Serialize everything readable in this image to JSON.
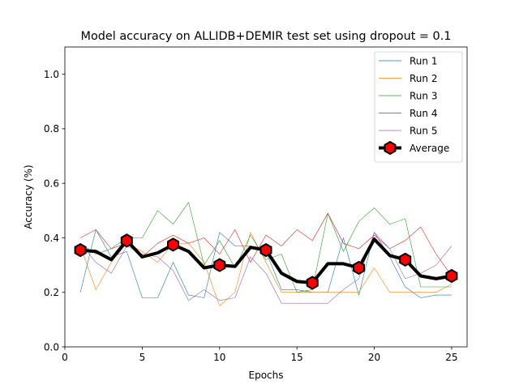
{
  "chart_data": {
    "type": "line",
    "title": "Model accuracy on ALLIDB+DEMIR test set using dropout = 0.1",
    "xlabel": "Epochs",
    "ylabel": "Accuracy (%)",
    "xlim": [
      0,
      26
    ],
    "ylim": [
      0.0,
      1.1
    ],
    "xticks": [
      0,
      5,
      10,
      15,
      20,
      25
    ],
    "yticks": [
      0.0,
      0.2,
      0.4,
      0.6,
      0.8,
      1.0
    ],
    "xtick_labels": [
      "0",
      "5",
      "10",
      "15",
      "20",
      "25"
    ],
    "ytick_labels": [
      "0.0",
      "0.2",
      "0.4",
      "0.6",
      "0.8",
      "1.0"
    ],
    "grid": false,
    "legend_position": "top-right",
    "x": [
      1,
      2,
      3,
      4,
      5,
      6,
      7,
      8,
      9,
      10,
      11,
      12,
      13,
      14,
      15,
      16,
      17,
      18,
      19,
      20,
      21,
      22,
      23,
      24,
      25
    ],
    "series": [
      {
        "name": "Run 1",
        "color": "#1f77b4",
        "values": [
          0.2,
          0.43,
          0.33,
          0.35,
          0.18,
          0.18,
          0.31,
          0.19,
          0.18,
          0.42,
          0.37,
          0.37,
          0.35,
          0.21,
          0.21,
          0.2,
          0.2,
          0.4,
          0.19,
          0.42,
          0.33,
          0.22,
          0.18,
          0.19,
          0.19
        ]
      },
      {
        "name": "Run 2",
        "color": "#ff7f0e",
        "values": [
          0.37,
          0.21,
          0.31,
          0.38,
          0.35,
          0.31,
          0.38,
          0.38,
          0.31,
          0.15,
          0.2,
          0.42,
          0.31,
          0.2,
          0.2,
          0.2,
          0.2,
          0.2,
          0.2,
          0.29,
          0.2,
          0.2,
          0.2,
          0.2,
          0.23
        ]
      },
      {
        "name": "Run 3",
        "color": "#2ca02c",
        "values": [
          0.38,
          0.34,
          0.36,
          0.4,
          0.4,
          0.5,
          0.45,
          0.53,
          0.3,
          0.39,
          0.29,
          0.41,
          0.32,
          0.34,
          0.2,
          0.21,
          0.49,
          0.35,
          0.46,
          0.51,
          0.45,
          0.47,
          0.22,
          0.22,
          0.22
        ]
      },
      {
        "name": "Run 4",
        "color": "#d62728",
        "values": [
          0.4,
          0.43,
          0.36,
          0.38,
          0.33,
          0.38,
          0.41,
          0.38,
          0.4,
          0.34,
          0.43,
          0.31,
          0.41,
          0.37,
          0.43,
          0.39,
          0.49,
          0.38,
          0.36,
          0.41,
          0.36,
          0.39,
          0.44,
          0.34,
          0.26
        ]
      },
      {
        "name": "Run 5",
        "color": "#9467bd",
        "values": [
          0.38,
          0.31,
          0.27,
          0.37,
          0.34,
          0.33,
          0.28,
          0.17,
          0.21,
          0.17,
          0.18,
          0.33,
          0.27,
          0.16,
          0.16,
          0.16,
          0.16,
          0.21,
          0.25,
          0.42,
          0.36,
          0.25,
          0.27,
          0.3,
          0.37
        ]
      },
      {
        "name": "Average",
        "color": "#000000",
        "marker_color": "#ff0000",
        "marker_every": 3,
        "values": [
          0.355,
          0.35,
          0.32,
          0.39,
          0.33,
          0.345,
          0.375,
          0.35,
          0.29,
          0.3,
          0.295,
          0.365,
          0.355,
          0.27,
          0.24,
          0.235,
          0.305,
          0.305,
          0.29,
          0.395,
          0.335,
          0.32,
          0.26,
          0.25,
          0.26
        ]
      }
    ]
  }
}
